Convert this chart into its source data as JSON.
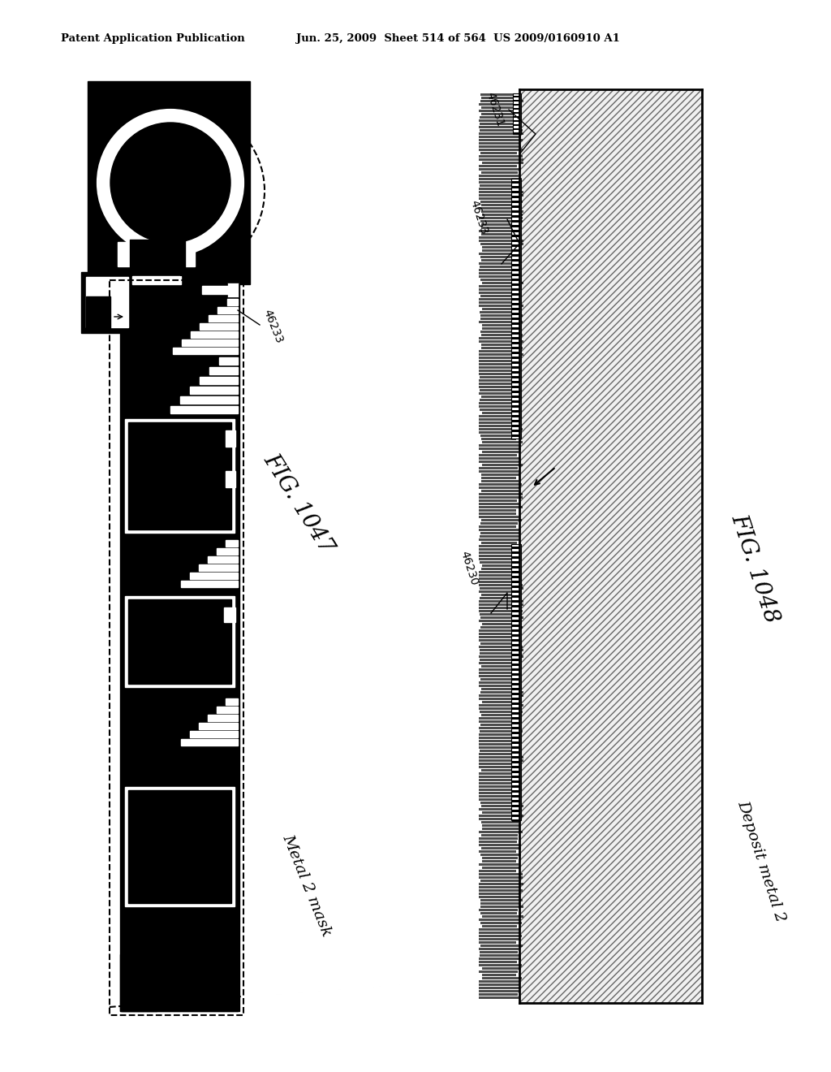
{
  "title_left": "Patent Application Publication",
  "title_right": "Jun. 25, 2009  Sheet 514 of 564  US 2009/0160910 A1",
  "fig1_label": "FIG. 1047",
  "fig2_label": "FIG. 1048",
  "caption1": "Metal 2 mask",
  "caption2": "Deposit metal 2",
  "label_46233_left": "46233",
  "label_46231": "46231",
  "label_46233_right": "46233",
  "label_46230": "46230",
  "bg_color": "#ffffff",
  "black": "#000000",
  "white": "#ffffff"
}
